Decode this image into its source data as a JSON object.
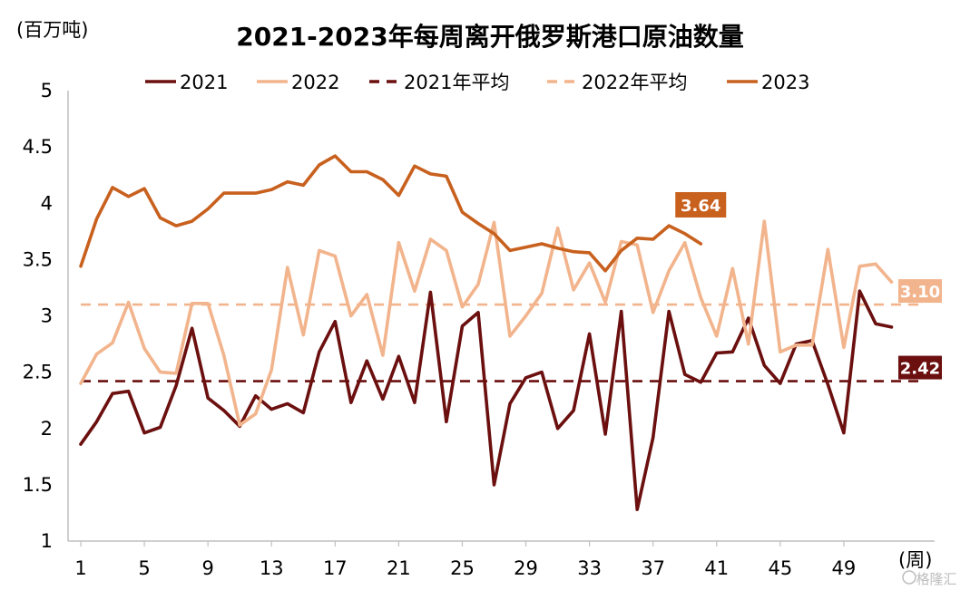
{
  "chart_data": {
    "type": "line",
    "title": "2021-2023年每周离开俄罗斯港口原油数量",
    "ylabel": "(百万吨)",
    "xlabel": "(周)",
    "ylim": [
      1,
      5
    ],
    "yticks": [
      "1",
      "1.5",
      "2",
      "2.5",
      "3",
      "3.5",
      "4",
      "4.5",
      "5"
    ],
    "xlim": [
      1,
      53
    ],
    "xticks": [
      "1",
      "5",
      "9",
      "13",
      "17",
      "21",
      "25",
      "29",
      "33",
      "37",
      "41",
      "45",
      "49"
    ],
    "grid": false,
    "legend_position": "top",
    "legend": [
      "2021",
      "2022",
      "2021年平均",
      "2022年平均",
      "2023"
    ],
    "watermark": "格隆汇",
    "series": [
      {
        "name": "2021",
        "color": "#6b0f0f",
        "style": "solid",
        "values": [
          1.86,
          2.06,
          2.31,
          2.33,
          1.96,
          2.01,
          2.38,
          2.89,
          2.27,
          2.16,
          2.02,
          2.29,
          2.17,
          2.22,
          2.14,
          2.68,
          2.95,
          2.23,
          2.6,
          2.26,
          2.64,
          2.23,
          3.21,
          2.06,
          2.91,
          3.03,
          1.5,
          2.22,
          2.45,
          2.5,
          2.0,
          2.16,
          2.84,
          1.95,
          3.04,
          1.28,
          1.92,
          3.04,
          2.48,
          2.41,
          2.67,
          2.68,
          2.98,
          2.56,
          2.4,
          2.75,
          2.78,
          2.39,
          1.96,
          3.22,
          2.93,
          2.9
        ]
      },
      {
        "name": "2022",
        "color": "#f2b48c",
        "style": "solid",
        "values": [
          2.4,
          2.66,
          2.76,
          3.12,
          2.71,
          2.5,
          2.49,
          3.11,
          3.11,
          2.65,
          2.03,
          2.13,
          2.52,
          3.43,
          2.83,
          3.58,
          3.53,
          3.0,
          3.19,
          2.65,
          3.65,
          3.22,
          3.68,
          3.58,
          3.08,
          3.28,
          3.83,
          2.82,
          3.0,
          3.2,
          3.78,
          3.23,
          3.47,
          3.12,
          3.66,
          3.63,
          3.03,
          3.4,
          3.65,
          3.16,
          2.82,
          3.42,
          2.75,
          3.84,
          2.68,
          2.74,
          2.74,
          3.59,
          2.72,
          3.44,
          3.46,
          3.3
        ]
      },
      {
        "name": "2023",
        "color": "#c8601e",
        "style": "solid",
        "values": [
          3.44,
          3.86,
          4.14,
          4.06,
          4.13,
          3.87,
          3.8,
          3.84,
          3.95,
          4.09,
          4.09,
          4.09,
          4.12,
          4.19,
          4.16,
          4.34,
          4.42,
          4.28,
          4.28,
          4.21,
          4.07,
          4.33,
          4.26,
          4.24,
          3.92,
          3.82,
          3.73,
          3.58,
          3.61,
          3.64,
          3.6,
          3.57,
          3.56,
          3.4,
          3.58,
          3.69,
          3.68,
          3.8,
          3.73,
          3.64
        ]
      }
    ],
    "averages": [
      {
        "name": "2021年平均",
        "value": 2.42,
        "color": "#6b0f0f",
        "label": "2.42"
      },
      {
        "name": "2022年平均",
        "value": 3.1,
        "color": "#f2b48c",
        "label": "3.10"
      }
    ],
    "annotations": [
      {
        "series": "2023",
        "label": "3.64",
        "color": "#c8601e",
        "x": 40,
        "y": 3.64
      }
    ]
  }
}
